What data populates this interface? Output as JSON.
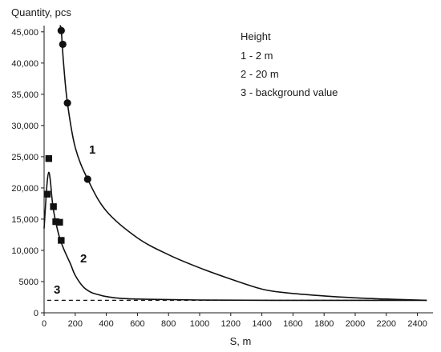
{
  "chart_data": {
    "type": "line",
    "ylabel": "Quantity, pcs",
    "xlabel": "S, m",
    "xlim": [
      0,
      2500
    ],
    "ylim": [
      0,
      46000
    ],
    "x_ticks": [
      0,
      200,
      400,
      600,
      800,
      1000,
      1200,
      1400,
      1600,
      1800,
      2000,
      2200,
      2400
    ],
    "x_tick_labels": [
      "0",
      "200",
      "400",
      "600",
      "800",
      "1000",
      "1200",
      "1400",
      "1600",
      "1800",
      "2000",
      "2200",
      "2400"
    ],
    "y_ticks": [
      0,
      5000,
      10000,
      15000,
      20000,
      25000,
      30000,
      35000,
      40000,
      45000
    ],
    "y_tick_labels": [
      "0",
      "5000",
      "10,000",
      "15,000",
      "20,000",
      "25,000",
      "30,000",
      "35,000",
      "40,000",
      "45,000"
    ],
    "grid": false,
    "legend": {
      "title": "Height",
      "entries": [
        "1 - 2 m",
        "2 - 20 m",
        "3 - background value"
      ],
      "placement": "top-right"
    },
    "series": [
      {
        "label": "1",
        "line_style": "solid",
        "marker": "circle",
        "points_x": [
          110,
          120,
          150,
          280
        ],
        "points_y": [
          45200,
          43000,
          33600,
          21400
        ],
        "curve_x": [
          100,
          110,
          125,
          150,
          200,
          280,
          400,
          600,
          800,
          1000,
          1200,
          1400,
          1560,
          1800,
          2000,
          2200,
          2400,
          2460
        ],
        "curve_y": [
          46000,
          45300,
          40000,
          33600,
          26500,
          21400,
          16300,
          12000,
          9300,
          7200,
          5400,
          3800,
          3200,
          2700,
          2400,
          2200,
          2050,
          2000
        ]
      },
      {
        "label": "2",
        "line_style": "solid",
        "marker": "square",
        "points_x": [
          20,
          30,
          60,
          75,
          100,
          110
        ],
        "points_y": [
          19000,
          24700,
          17000,
          14600,
          14500,
          11600
        ],
        "curve_x": [
          0,
          10,
          20,
          30,
          40,
          50,
          60,
          75,
          100,
          130,
          170,
          200,
          250,
          300,
          350,
          400,
          500,
          700,
          1000,
          1500,
          2000,
          2460
        ],
        "curve_y": [
          13500,
          17500,
          21000,
          22500,
          21200,
          18500,
          16500,
          14500,
          12000,
          10000,
          7800,
          6000,
          4200,
          3300,
          2900,
          2600,
          2300,
          2150,
          2050,
          2000,
          2000,
          2000
        ]
      },
      {
        "label": "3",
        "line_style": "dashed",
        "marker": "none",
        "curve_x": [
          20,
          2460
        ],
        "curve_y": [
          2000,
          2000
        ]
      }
    ]
  }
}
